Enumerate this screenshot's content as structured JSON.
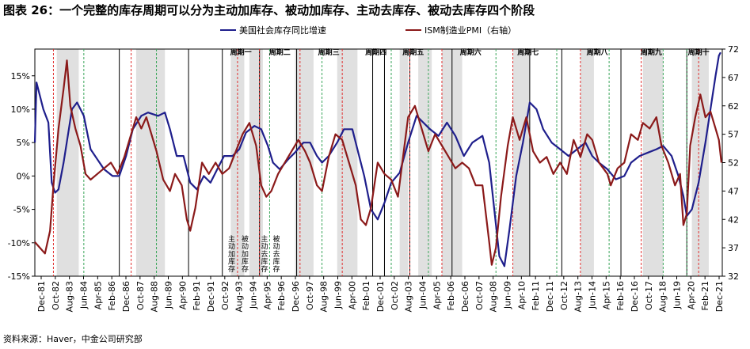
{
  "title": "图表 26：一个完整的库存周期可以分为主动加库存、被动加库存、主动去库存、被动去库存四个阶段",
  "source": "资料来源：Haver，中金公司研究部",
  "colors": {
    "inventory": "#1f1f8c",
    "pmi": "#8b1a1a",
    "shade": "#e0e0e0",
    "red_line": "#e03030",
    "green_line": "#3aa55a"
  },
  "chart_data": {
    "type": "line",
    "title": "",
    "x_ticks": [
      "Dec-81",
      "Oct-82",
      "Aug-83",
      "Jun-84",
      "Apr-85",
      "Feb-86",
      "Dec-86",
      "Oct-87",
      "Aug-88",
      "Jun-89",
      "Apr-90",
      "Feb-91",
      "Dec-91",
      "Oct-92",
      "Aug-93",
      "Jun-94",
      "Apr-95",
      "Feb-96",
      "Dec-96",
      "Oct-97",
      "Aug-98",
      "Jun-99",
      "Apr-00",
      "Feb-01",
      "Dec-01",
      "Oct-02",
      "Aug-03",
      "Jun-04",
      "Apr-05",
      "Feb-06",
      "Dec-06",
      "Oct-07",
      "Aug-08",
      "Jun-09",
      "Apr-10",
      "Feb-11",
      "Dec-11",
      "Oct-12",
      "Aug-13",
      "Jun-14",
      "Apr-15",
      "Feb-16",
      "Dec-16",
      "Oct-17",
      "Aug-18",
      "Jun-19",
      "Apr-20",
      "Feb-21",
      "Dec-21"
    ],
    "y_left": {
      "ticks": [
        "-15%",
        "-10%",
        "-5%",
        "0%",
        "5%",
        "10%",
        "15%"
      ],
      "min": -15,
      "max": 19
    },
    "y_right": {
      "ticks": [
        "32",
        "37",
        "42",
        "47",
        "52",
        "57",
        "62",
        "67",
        "72"
      ],
      "min": 32,
      "max": 72
    },
    "x_range": [
      1981.9,
      2022.6
    ],
    "cycle_labels": [
      {
        "label": "周期一",
        "x": 1994.1
      },
      {
        "label": "周期二",
        "x": 1996.4
      },
      {
        "label": "周期三",
        "x": 1999.3
      },
      {
        "label": "周期四",
        "x": 2002.1
      },
      {
        "label": "周期五",
        "x": 2004.3
      },
      {
        "label": "周期六",
        "x": 2007.7
      },
      {
        "label": "周期七",
        "x": 2011.1
      },
      {
        "label": "周期八",
        "x": 2015.2
      },
      {
        "label": "周期九",
        "x": 2018.4
      },
      {
        "label": "周期十",
        "x": 2021.2
      }
    ],
    "cycle_boundaries": [
      1981.9,
      1986.9,
      1991.0,
      1993.0,
      1995.2,
      1997.4,
      2001.9,
      2002.6,
      2004.1,
      2006.6,
      2011.2,
      2013.1,
      2016.6,
      2020.5
    ],
    "shaded_periods": [
      [
        1983.2,
        1984.5
      ],
      [
        1987.9,
        1989.6
      ],
      [
        1993.5,
        1994.3
      ],
      [
        1994.6,
        1995.4
      ],
      [
        1997.3,
        1998.4
      ],
      [
        1999.8,
        2001.0
      ],
      [
        2003.5,
        2004.0
      ],
      [
        2004.6,
        2005.4
      ],
      [
        2006.0,
        2007.2
      ],
      [
        2010.2,
        2011.2
      ],
      [
        2014.2,
        2015.0
      ],
      [
        2017.9,
        2019.1
      ],
      [
        2020.8,
        2021.8
      ]
    ],
    "red_dashed": [
      1983.0,
      1987.6,
      1993.9,
      1995.2,
      1997.6,
      2000.1,
      2004.1,
      2006.0,
      2010.2,
      2014.2,
      2017.8,
      2021.2
    ],
    "green_dashed": [
      1984.8,
      1989.1,
      1995.8,
      1998.9,
      2003.0,
      2005.2,
      2009.2,
      2012.8,
      2015.9,
      2019.1,
      2020.5
    ],
    "stage_labels": [
      "主动加库存",
      "被动加库存",
      "主动去库存",
      "被动去库存"
    ],
    "series": [
      {
        "name": "美国社会库存同比增速",
        "axis": "left",
        "points": [
          [
            1981.9,
            5
          ],
          [
            1982.0,
            14
          ],
          [
            1982.4,
            10
          ],
          [
            1982.7,
            8
          ],
          [
            1982.9,
            -1
          ],
          [
            1983.1,
            -2.5
          ],
          [
            1983.3,
            -2
          ],
          [
            1983.6,
            2
          ],
          [
            1984.1,
            10
          ],
          [
            1984.4,
            11
          ],
          [
            1984.8,
            9
          ],
          [
            1985.2,
            4
          ],
          [
            1985.6,
            2.5
          ],
          [
            1986.0,
            1
          ],
          [
            1986.5,
            0
          ],
          [
            1986.9,
            0
          ],
          [
            1987.3,
            3
          ],
          [
            1987.7,
            7
          ],
          [
            1988.2,
            9
          ],
          [
            1988.6,
            9.5
          ],
          [
            1989.2,
            9
          ],
          [
            1989.6,
            9.5
          ],
          [
            1989.9,
            7
          ],
          [
            1990.3,
            3
          ],
          [
            1990.7,
            3
          ],
          [
            1991.1,
            -1
          ],
          [
            1991.5,
            -2
          ],
          [
            1991.9,
            0
          ],
          [
            1992.3,
            -1
          ],
          [
            1992.7,
            1
          ],
          [
            1993.1,
            3
          ],
          [
            1993.6,
            3
          ],
          [
            1994.0,
            4
          ],
          [
            1994.4,
            6.5
          ],
          [
            1994.9,
            7.5
          ],
          [
            1995.3,
            7
          ],
          [
            1995.7,
            4.5
          ],
          [
            1996.0,
            2
          ],
          [
            1996.4,
            1
          ],
          [
            1996.9,
            2.5
          ],
          [
            1997.3,
            3.5
          ],
          [
            1997.8,
            5
          ],
          [
            1998.2,
            5
          ],
          [
            1998.6,
            3
          ],
          [
            1998.9,
            2
          ],
          [
            1999.3,
            3
          ],
          [
            1999.8,
            5
          ],
          [
            2000.2,
            7
          ],
          [
            2000.7,
            7
          ],
          [
            2001.0,
            4
          ],
          [
            2001.4,
            0
          ],
          [
            2001.8,
            -5
          ],
          [
            2002.2,
            -6.5
          ],
          [
            2002.6,
            -4
          ],
          [
            2003.0,
            -1
          ],
          [
            2003.5,
            0.5
          ],
          [
            2004.0,
            5
          ],
          [
            2004.5,
            9
          ],
          [
            2004.9,
            8
          ],
          [
            2005.3,
            7
          ],
          [
            2005.8,
            6
          ],
          [
            2006.3,
            8
          ],
          [
            2006.8,
            6
          ],
          [
            2007.3,
            3
          ],
          [
            2007.8,
            5
          ],
          [
            2008.4,
            6
          ],
          [
            2008.8,
            2
          ],
          [
            2009.1,
            -5
          ],
          [
            2009.4,
            -12
          ],
          [
            2009.7,
            -13.5
          ],
          [
            2010.0,
            -8
          ],
          [
            2010.4,
            0
          ],
          [
            2010.8,
            5
          ],
          [
            2011.2,
            11
          ],
          [
            2011.6,
            10
          ],
          [
            2012.0,
            7
          ],
          [
            2012.5,
            5
          ],
          [
            2013.0,
            4
          ],
          [
            2013.5,
            3
          ],
          [
            2014.0,
            4
          ],
          [
            2014.5,
            5
          ],
          [
            2014.9,
            3
          ],
          [
            2015.3,
            2
          ],
          [
            2015.8,
            1
          ],
          [
            2016.3,
            -0.5
          ],
          [
            2016.8,
            0
          ],
          [
            2017.2,
            2
          ],
          [
            2017.7,
            3
          ],
          [
            2018.2,
            3.5
          ],
          [
            2018.7,
            4
          ],
          [
            2019.1,
            4.5
          ],
          [
            2019.6,
            3
          ],
          [
            2020.0,
            0
          ],
          [
            2020.3,
            -3
          ],
          [
            2020.5,
            -6
          ],
          [
            2020.8,
            -5
          ],
          [
            2021.2,
            -1
          ],
          [
            2021.6,
            5
          ],
          [
            2021.9,
            10
          ],
          [
            2022.2,
            15
          ],
          [
            2022.4,
            18
          ],
          [
            2022.5,
            18.5
          ]
        ]
      },
      {
        "name": "ISM制造业PMI（右轴）",
        "axis": "right",
        "points": [
          [
            1981.9,
            38
          ],
          [
            1982.2,
            37
          ],
          [
            1982.5,
            36
          ],
          [
            1982.8,
            40
          ],
          [
            1983.0,
            48
          ],
          [
            1983.3,
            58
          ],
          [
            1983.6,
            65
          ],
          [
            1983.8,
            70
          ],
          [
            1984.0,
            62
          ],
          [
            1984.3,
            58
          ],
          [
            1984.6,
            55
          ],
          [
            1984.9,
            50
          ],
          [
            1985.2,
            49
          ],
          [
            1985.6,
            50
          ],
          [
            1986.0,
            51
          ],
          [
            1986.4,
            52
          ],
          [
            1986.8,
            50
          ],
          [
            1987.2,
            53
          ],
          [
            1987.6,
            57
          ],
          [
            1987.9,
            60
          ],
          [
            1988.2,
            58
          ],
          [
            1988.5,
            60
          ],
          [
            1988.8,
            57
          ],
          [
            1989.1,
            54
          ],
          [
            1989.5,
            49
          ],
          [
            1989.9,
            47
          ],
          [
            1990.2,
            50
          ],
          [
            1990.6,
            48
          ],
          [
            1990.9,
            42
          ],
          [
            1991.1,
            40
          ],
          [
            1991.4,
            44
          ],
          [
            1991.8,
            52
          ],
          [
            1992.2,
            50
          ],
          [
            1992.6,
            52
          ],
          [
            1993.0,
            50
          ],
          [
            1993.4,
            51
          ],
          [
            1993.8,
            54
          ],
          [
            1994.2,
            57
          ],
          [
            1994.6,
            59
          ],
          [
            1995.0,
            55
          ],
          [
            1995.3,
            48
          ],
          [
            1995.6,
            46
          ],
          [
            1995.9,
            47
          ],
          [
            1996.3,
            50
          ],
          [
            1996.7,
            52
          ],
          [
            1997.1,
            54
          ],
          [
            1997.5,
            56
          ],
          [
            1997.9,
            54
          ],
          [
            1998.2,
            52
          ],
          [
            1998.6,
            48
          ],
          [
            1998.9,
            47
          ],
          [
            1999.3,
            53
          ],
          [
            1999.7,
            57
          ],
          [
            2000.1,
            56
          ],
          [
            2000.5,
            52
          ],
          [
            2000.9,
            48
          ],
          [
            2001.2,
            42
          ],
          [
            2001.5,
            41
          ],
          [
            2001.8,
            44
          ],
          [
            2002.2,
            52
          ],
          [
            2002.6,
            50
          ],
          [
            2003.0,
            49
          ],
          [
            2003.4,
            46
          ],
          [
            2003.7,
            53
          ],
          [
            2004.0,
            60
          ],
          [
            2004.4,
            62
          ],
          [
            2004.8,
            58
          ],
          [
            2005.2,
            54
          ],
          [
            2005.6,
            57
          ],
          [
            2006.0,
            55
          ],
          [
            2006.4,
            53
          ],
          [
            2006.8,
            51
          ],
          [
            2007.2,
            52
          ],
          [
            2007.6,
            51
          ],
          [
            2008.0,
            48
          ],
          [
            2008.4,
            48
          ],
          [
            2008.8,
            38
          ],
          [
            2008.95,
            34
          ],
          [
            2009.2,
            37
          ],
          [
            2009.5,
            46
          ],
          [
            2009.9,
            55
          ],
          [
            2010.2,
            60
          ],
          [
            2010.6,
            56
          ],
          [
            2011.0,
            60
          ],
          [
            2011.4,
            54
          ],
          [
            2011.8,
            52
          ],
          [
            2012.2,
            53
          ],
          [
            2012.6,
            50
          ],
          [
            2013.0,
            52
          ],
          [
            2013.4,
            50
          ],
          [
            2013.8,
            56
          ],
          [
            2014.2,
            53
          ],
          [
            2014.6,
            57
          ],
          [
            2014.9,
            56
          ],
          [
            2015.3,
            52
          ],
          [
            2015.8,
            50
          ],
          [
            2016.0,
            48
          ],
          [
            2016.4,
            51
          ],
          [
            2016.8,
            52
          ],
          [
            2017.2,
            57
          ],
          [
            2017.6,
            56
          ],
          [
            2017.9,
            59
          ],
          [
            2018.3,
            58
          ],
          [
            2018.7,
            60
          ],
          [
            2019.0,
            55
          ],
          [
            2019.4,
            52
          ],
          [
            2019.8,
            48
          ],
          [
            2020.1,
            50
          ],
          [
            2020.3,
            41
          ],
          [
            2020.5,
            43
          ],
          [
            2020.7,
            55
          ],
          [
            2021.0,
            60
          ],
          [
            2021.3,
            64
          ],
          [
            2021.6,
            60
          ],
          [
            2021.9,
            61
          ],
          [
            2022.2,
            58
          ],
          [
            2022.4,
            56
          ],
          [
            2022.55,
            52
          ]
        ]
      }
    ]
  }
}
